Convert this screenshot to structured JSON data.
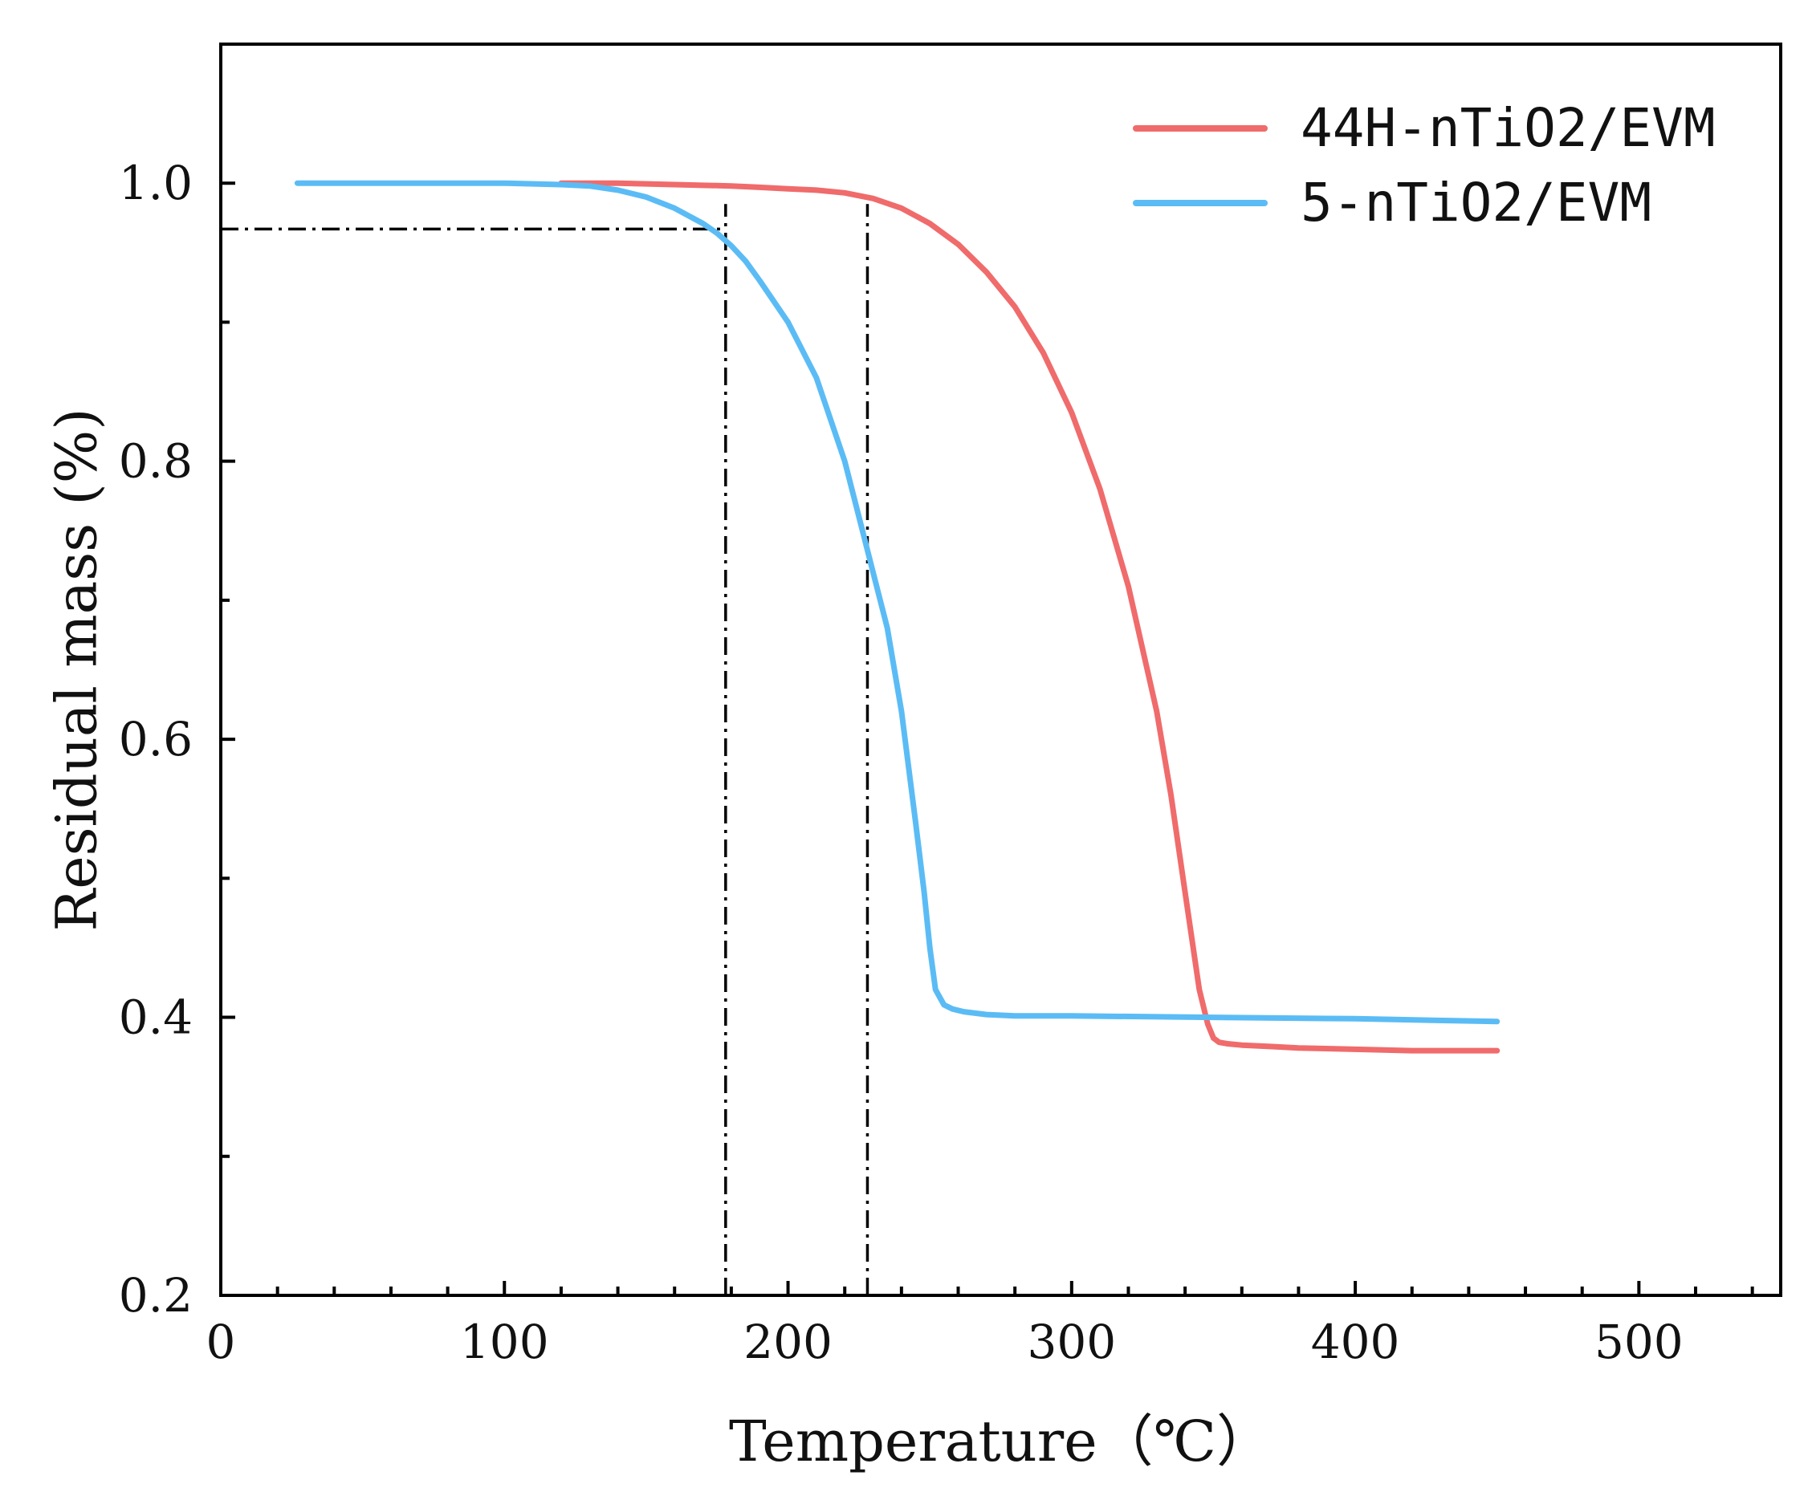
{
  "chart_data": {
    "type": "line",
    "title": "",
    "xlabel": "Temperature（℃）",
    "ylabel": "Residual mass (%)",
    "xlim": [
      0,
      550
    ],
    "ylim": [
      0.2,
      1.1
    ],
    "x_ticks": [
      0,
      100,
      200,
      300,
      400,
      500
    ],
    "x_tick_labels": [
      "0",
      "100",
      "200",
      "300",
      "400",
      "500"
    ],
    "x_minor_step": 20,
    "y_ticks": [
      0.2,
      0.4,
      0.6,
      0.8,
      1.0
    ],
    "y_tick_labels": [
      "0.2",
      "0.4",
      "0.6",
      "0.8",
      "1.0"
    ],
    "y_minor_step": 0.1,
    "grid": false,
    "legend_position": "top-right",
    "series": [
      {
        "name": "44H-nTiO2/EVM",
        "color": "#f06b6b",
        "x": [
          120,
          140,
          160,
          180,
          190,
          200,
          210,
          220,
          230,
          240,
          250,
          260,
          270,
          280,
          290,
          300,
          310,
          320,
          330,
          335,
          340,
          345,
          348,
          350,
          352,
          355,
          360,
          370,
          380,
          400,
          420,
          450
        ],
        "y": [
          1.0,
          1.0,
          0.999,
          0.998,
          0.997,
          0.996,
          0.995,
          0.993,
          0.989,
          0.982,
          0.971,
          0.956,
          0.936,
          0.911,
          0.878,
          0.835,
          0.78,
          0.71,
          0.62,
          0.56,
          0.49,
          0.42,
          0.395,
          0.385,
          0.382,
          0.381,
          0.38,
          0.379,
          0.378,
          0.377,
          0.376,
          0.376
        ]
      },
      {
        "name": "5-nTiO2/EVM",
        "color": "#5bbcf5",
        "x": [
          27,
          50,
          80,
          100,
          120,
          130,
          140,
          150,
          160,
          170,
          175,
          180,
          185,
          190,
          200,
          210,
          220,
          225,
          230,
          235,
          240,
          245,
          248,
          250,
          252,
          255,
          258,
          262,
          270,
          280,
          300,
          350,
          400,
          450
        ],
        "y": [
          1.0,
          1.0,
          1.0,
          1.0,
          0.999,
          0.998,
          0.995,
          0.99,
          0.982,
          0.971,
          0.964,
          0.955,
          0.944,
          0.93,
          0.9,
          0.86,
          0.8,
          0.76,
          0.72,
          0.68,
          0.62,
          0.54,
          0.49,
          0.45,
          0.42,
          0.409,
          0.406,
          0.404,
          0.402,
          0.401,
          0.401,
          0.4,
          0.399,
          0.397
        ]
      }
    ],
    "reference_lines": [
      {
        "orientation": "horizontal",
        "y": 0.967,
        "x_from": 0,
        "x_to": 178
      },
      {
        "orientation": "vertical",
        "x": 178,
        "y_from": 0.2,
        "y_to": 0.985
      },
      {
        "orientation": "vertical",
        "x": 228,
        "y_from": 0.2,
        "y_to": 0.985
      }
    ]
  }
}
